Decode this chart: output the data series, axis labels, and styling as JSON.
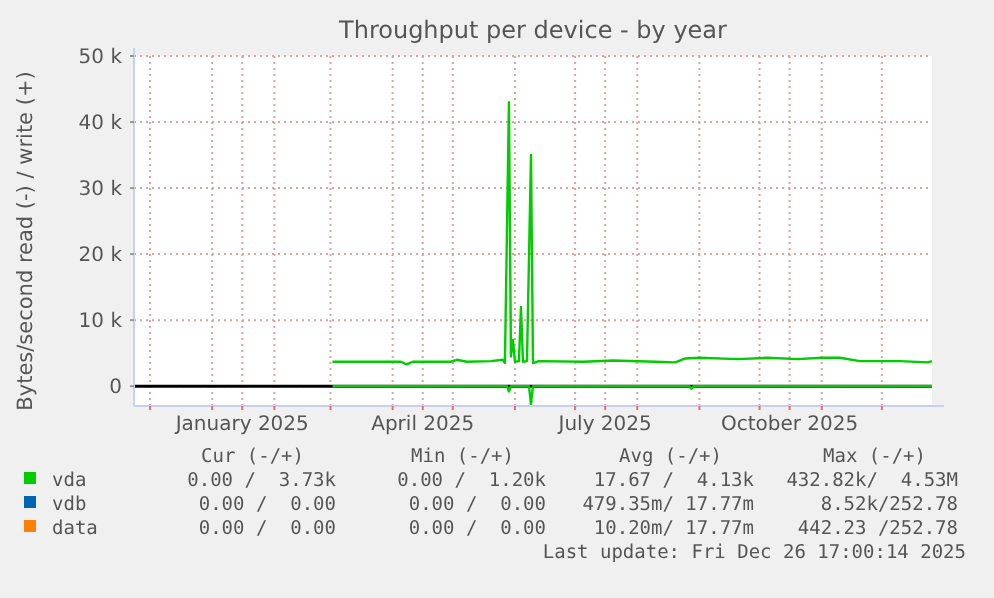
{
  "chart_data": {
    "type": "line",
    "title": "Throughput per device - by year",
    "ylabel": "Bytes/second read (-) / write (+)",
    "xlim": [
      "2024-11-23",
      "2025-12-26"
    ],
    "ylim": [
      -3000,
      50000
    ],
    "yticks": [
      {
        "value": 0,
        "label": "0"
      },
      {
        "value": 10000,
        "label": "10 k"
      },
      {
        "value": 20000,
        "label": "20 k"
      },
      {
        "value": 30000,
        "label": "30 k"
      },
      {
        "value": 40000,
        "label": "40 k"
      },
      {
        "value": 50000,
        "label": "50 k"
      }
    ],
    "xticks": [
      {
        "value": "2024-12-01",
        "label": null
      },
      {
        "value": "2025-01-01",
        "label": null
      },
      {
        "value": "2025-01-16",
        "label": "January 2025"
      },
      {
        "value": "2025-02-01",
        "label": null
      },
      {
        "value": "2025-03-01",
        "label": null
      },
      {
        "value": "2025-04-01",
        "label": null
      },
      {
        "value": "2025-04-16",
        "label": "April 2025"
      },
      {
        "value": "2025-05-01",
        "label": null
      },
      {
        "value": "2025-06-01",
        "label": null
      },
      {
        "value": "2025-07-01",
        "label": null
      },
      {
        "value": "2025-07-16",
        "label": "July 2025"
      },
      {
        "value": "2025-08-01",
        "label": null
      },
      {
        "value": "2025-09-01",
        "label": null
      },
      {
        "value": "2025-10-01",
        "label": null
      },
      {
        "value": "2025-10-16",
        "label": "October 2025"
      },
      {
        "value": "2025-11-01",
        "label": null
      },
      {
        "value": "2025-12-01",
        "label": null
      }
    ],
    "grid": true,
    "legend": "bottom",
    "marker": "none",
    "line_style": "solid",
    "ref_lines": [
      {
        "axis": "y",
        "value": 0,
        "color": "#000000"
      }
    ],
    "series": [
      {
        "name": "vda",
        "color": "#00cc00",
        "x": [
          "2025-03-02",
          "2025-04-05",
          "2025-04-08",
          "2025-04-11",
          "2025-04-30",
          "2025-05-03",
          "2025-05-08",
          "2025-05-20",
          "2025-05-26",
          "2025-05-27",
          "2025-05-29",
          "2025-05-30",
          "2025-05-31",
          "2025-06-01",
          "2025-06-03",
          "2025-06-04",
          "2025-06-05",
          "2025-06-07",
          "2025-06-09",
          "2025-06-10",
          "2025-06-13",
          "2025-07-05",
          "2025-07-20",
          "2025-08-10",
          "2025-08-20",
          "2025-08-25",
          "2025-09-01",
          "2025-09-20",
          "2025-10-05",
          "2025-10-20",
          "2025-11-01",
          "2025-11-10",
          "2025-11-20",
          "2025-12-10",
          "2025-12-24",
          "2025-12-26"
        ],
        "values": [
          3700,
          3700,
          3300,
          3700,
          3700,
          4000,
          3700,
          3800,
          4000,
          3500,
          43000,
          4500,
          7000,
          3700,
          3800,
          12000,
          3700,
          3800,
          35000,
          3500,
          3800,
          3700,
          3900,
          3700,
          3600,
          4200,
          4300,
          4100,
          4300,
          4100,
          4300,
          4300,
          3800,
          3800,
          3600,
          3800
        ]
      },
      {
        "color": "#00cc00",
        "x": [
          "2025-03-02",
          "2025-05-28",
          "2025-05-29",
          "2025-05-30",
          "2025-06-08",
          "2025-06-09",
          "2025-06-10",
          "2025-08-27",
          "2025-08-28",
          "2025-08-29",
          "2025-12-26"
        ],
        "values": [
          0,
          0,
          -800,
          0,
          0,
          -2800,
          0,
          0,
          -400,
          0,
          0
        ]
      },
      {
        "name": "vdb",
        "color": "#0066b3"
      },
      {
        "name": "data",
        "color": "#ff8000"
      }
    ],
    "annotations": [
      "Cur (-/+)",
      "Min (-/+)",
      "Avg (-/+)",
      "Max (-/+)",
      "0.00 /  3.73k",
      "0.00 /  1.20k",
      "17.67 /  4.13k",
      "432.82k/  4.53M",
      "0.00 /  0.00",
      "0.00 /  0.00",
      "479.35m/ 17.77m",
      "8.52k/252.78",
      "0.00 /  0.00",
      "0.00 /  0.00",
      "10.20m/ 17.77m",
      "442.23 /252.78",
      "Last update: Fri Dec 26 17:00:14 2025"
    ]
  }
}
